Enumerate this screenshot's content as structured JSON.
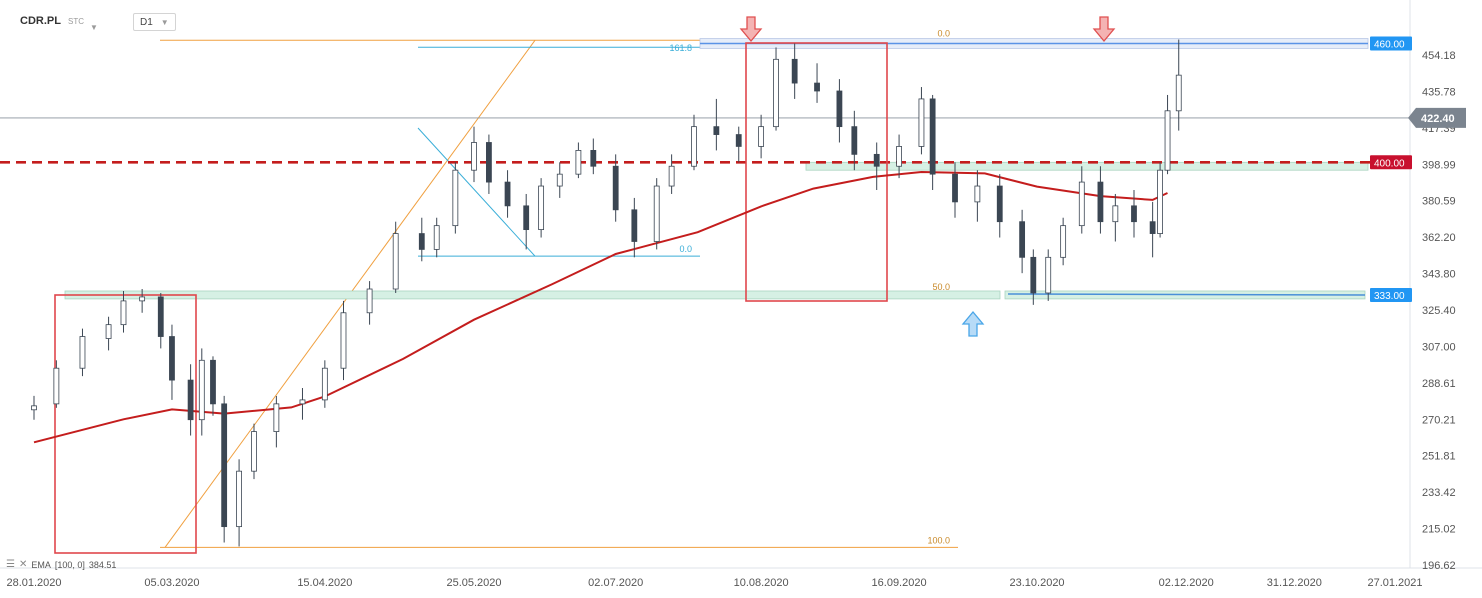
{
  "header": {
    "symbol": "CDR.PL",
    "market": "STC",
    "timeframe": "D1"
  },
  "legend": {
    "indicator": "EMA",
    "params": "[100, 0]",
    "value": "384.51"
  },
  "price_tags": {
    "current": "422.40",
    "resistance_high": "460.00",
    "support_mid": "400.00",
    "support_low": "333.00"
  },
  "colors": {
    "bull_candle": "#ffffff",
    "bear_candle": "#3b4653",
    "ema": "#c41d1d",
    "dashed_level": "#c41d1d",
    "fib_orange": "#f0a040",
    "fib_blue": "#3aaed8",
    "zone_fill": "#d6f0e4",
    "sell_arrow": "#e05050",
    "buy_arrow": "#4aa6e8",
    "tag_blue": "#2196f3",
    "tag_red": "#c8102e",
    "tag_grey": "#7b848f"
  },
  "chart_data": {
    "type": "candlestick",
    "title": "",
    "ylim": [
      196.62,
      472.56
    ],
    "y_ticks": [
      "454.18",
      "435.78",
      "417.39",
      "398.99",
      "380.59",
      "362.20",
      "343.80",
      "325.40",
      "307.00",
      "288.61",
      "270.21",
      "251.81",
      "233.42",
      "215.02",
      "196.62"
    ],
    "x_ticks": [
      "28.01.2020",
      "05.03.2020",
      "15.04.2020",
      "25.05.2020",
      "02.07.2020",
      "10.08.2020",
      "16.09.2020",
      "23.10.2020",
      "02.12.2020",
      "31.12.2020",
      "27.01.2021"
    ],
    "horizontal_levels": [
      {
        "value": 460.0,
        "style": "solid-blue-band"
      },
      {
        "value": 422.4,
        "style": "thin-grey"
      },
      {
        "value": 400.0,
        "style": "dashed-red"
      },
      {
        "value": 333.0,
        "style": "solid-blue-band"
      }
    ],
    "fibonacci_1": {
      "color": "orange",
      "levels": [
        {
          "label": "0.0",
          "price": 461.6
        },
        {
          "label": "50.0",
          "price": 333.5
        },
        {
          "label": "100.0",
          "price": 205.5
        }
      ]
    },
    "fibonacci_2": {
      "color": "blue",
      "levels": [
        {
          "label": "161.8",
          "price": 458.1
        },
        {
          "label": "0.0",
          "price": 352.6
        }
      ]
    },
    "ema_100": [
      {
        "date": "2020-01-28",
        "value": 258.6
      },
      {
        "date": "2020-02-21",
        "value": 270.2
      },
      {
        "date": "2020-03-05",
        "value": 275.2
      },
      {
        "date": "2020-03-19",
        "value": 273.1
      },
      {
        "date": "2020-04-06",
        "value": 276.2
      },
      {
        "date": "2020-04-15",
        "value": 281.7
      },
      {
        "date": "2020-05-06",
        "value": 300.7
      },
      {
        "date": "2020-05-25",
        "value": 320.5
      },
      {
        "date": "2020-06-15",
        "value": 338.5
      },
      {
        "date": "2020-07-02",
        "value": 353.7
      },
      {
        "date": "2020-07-24",
        "value": 364.7
      },
      {
        "date": "2020-08-10",
        "value": 377.7
      },
      {
        "date": "2020-08-24",
        "value": 386.7
      },
      {
        "date": "2020-09-09",
        "value": 392.6
      },
      {
        "date": "2020-09-22",
        "value": 395.1
      },
      {
        "date": "2020-10-09",
        "value": 394.4
      },
      {
        "date": "2020-10-23",
        "value": 387.7
      },
      {
        "date": "2020-11-09",
        "value": 382.9
      },
      {
        "date": "2020-11-23",
        "value": 381.0
      },
      {
        "date": "2020-11-27",
        "value": 384.5
      }
    ],
    "candles": [
      {
        "date": "2020-01-28",
        "o": 275,
        "h": 282,
        "l": 270,
        "c": 277
      },
      {
        "date": "2020-02-03",
        "o": 278,
        "h": 300,
        "l": 276,
        "c": 296
      },
      {
        "date": "2020-02-10",
        "o": 296,
        "h": 316,
        "l": 292,
        "c": 312
      },
      {
        "date": "2020-02-17",
        "o": 311,
        "h": 322,
        "l": 305,
        "c": 318
      },
      {
        "date": "2020-02-21",
        "o": 318,
        "h": 335,
        "l": 314,
        "c": 330
      },
      {
        "date": "2020-02-26",
        "o": 330,
        "h": 336,
        "l": 324,
        "c": 332
      },
      {
        "date": "2020-03-02",
        "o": 332,
        "h": 334,
        "l": 306,
        "c": 312
      },
      {
        "date": "2020-03-05",
        "o": 312,
        "h": 318,
        "l": 280,
        "c": 290
      },
      {
        "date": "2020-03-10",
        "o": 290,
        "h": 298,
        "l": 262,
        "c": 270
      },
      {
        "date": "2020-03-13",
        "o": 270,
        "h": 306,
        "l": 262,
        "c": 300
      },
      {
        "date": "2020-03-16",
        "o": 300,
        "h": 302,
        "l": 272,
        "c": 278
      },
      {
        "date": "2020-03-19",
        "o": 278,
        "h": 282,
        "l": 208,
        "c": 216
      },
      {
        "date": "2020-03-23",
        "o": 216,
        "h": 250,
        "l": 206,
        "c": 244
      },
      {
        "date": "2020-03-27",
        "o": 244,
        "h": 268,
        "l": 240,
        "c": 264
      },
      {
        "date": "2020-04-02",
        "o": 264,
        "h": 282,
        "l": 256,
        "c": 278
      },
      {
        "date": "2020-04-09",
        "o": 278,
        "h": 286,
        "l": 270,
        "c": 280
      },
      {
        "date": "2020-04-15",
        "o": 280,
        "h": 300,
        "l": 276,
        "c": 296
      },
      {
        "date": "2020-04-20",
        "o": 296,
        "h": 330,
        "l": 290,
        "c": 324
      },
      {
        "date": "2020-04-27",
        "o": 324,
        "h": 340,
        "l": 318,
        "c": 336
      },
      {
        "date": "2020-05-04",
        "o": 336,
        "h": 370,
        "l": 334,
        "c": 364
      },
      {
        "date": "2020-05-11",
        "o": 364,
        "h": 372,
        "l": 350,
        "c": 356
      },
      {
        "date": "2020-05-15",
        "o": 356,
        "h": 372,
        "l": 352,
        "c": 368
      },
      {
        "date": "2020-05-20",
        "o": 368,
        "h": 400,
        "l": 364,
        "c": 396
      },
      {
        "date": "2020-05-25",
        "o": 396,
        "h": 418,
        "l": 390,
        "c": 410
      },
      {
        "date": "2020-05-29",
        "o": 410,
        "h": 414,
        "l": 384,
        "c": 390
      },
      {
        "date": "2020-06-03",
        "o": 390,
        "h": 396,
        "l": 372,
        "c": 378
      },
      {
        "date": "2020-06-08",
        "o": 378,
        "h": 384,
        "l": 356,
        "c": 366
      },
      {
        "date": "2020-06-12",
        "o": 366,
        "h": 392,
        "l": 362,
        "c": 388
      },
      {
        "date": "2020-06-17",
        "o": 388,
        "h": 400,
        "l": 382,
        "c": 394
      },
      {
        "date": "2020-06-22",
        "o": 394,
        "h": 410,
        "l": 392,
        "c": 406
      },
      {
        "date": "2020-06-26",
        "o": 406,
        "h": 412,
        "l": 394,
        "c": 398
      },
      {
        "date": "2020-07-02",
        "o": 398,
        "h": 404,
        "l": 370,
        "c": 376
      },
      {
        "date": "2020-07-07",
        "o": 376,
        "h": 382,
        "l": 352,
        "c": 360
      },
      {
        "date": "2020-07-13",
        "o": 360,
        "h": 392,
        "l": 356,
        "c": 388
      },
      {
        "date": "2020-07-17",
        "o": 388,
        "h": 404,
        "l": 384,
        "c": 398
      },
      {
        "date": "2020-07-23",
        "o": 398,
        "h": 424,
        "l": 396,
        "c": 418
      },
      {
        "date": "2020-07-29",
        "o": 418,
        "h": 432,
        "l": 406,
        "c": 414
      },
      {
        "date": "2020-08-04",
        "o": 414,
        "h": 418,
        "l": 400,
        "c": 408
      },
      {
        "date": "2020-08-10",
        "o": 408,
        "h": 424,
        "l": 402,
        "c": 418
      },
      {
        "date": "2020-08-14",
        "o": 418,
        "h": 458,
        "l": 416,
        "c": 452
      },
      {
        "date": "2020-08-19",
        "o": 452,
        "h": 460,
        "l": 432,
        "c": 440
      },
      {
        "date": "2020-08-25",
        "o": 440,
        "h": 450,
        "l": 430,
        "c": 436
      },
      {
        "date": "2020-08-31",
        "o": 436,
        "h": 442,
        "l": 410,
        "c": 418
      },
      {
        "date": "2020-09-04",
        "o": 418,
        "h": 426,
        "l": 396,
        "c": 404
      },
      {
        "date": "2020-09-10",
        "o": 404,
        "h": 410,
        "l": 386,
        "c": 398
      },
      {
        "date": "2020-09-16",
        "o": 398,
        "h": 414,
        "l": 392,
        "c": 408
      },
      {
        "date": "2020-09-22",
        "o": 408,
        "h": 438,
        "l": 404,
        "c": 432
      },
      {
        "date": "2020-09-25",
        "o": 432,
        "h": 434,
        "l": 386,
        "c": 394
      },
      {
        "date": "2020-10-01",
        "o": 394,
        "h": 400,
        "l": 372,
        "c": 380
      },
      {
        "date": "2020-10-07",
        "o": 380,
        "h": 396,
        "l": 370,
        "c": 388
      },
      {
        "date": "2020-10-13",
        "o": 388,
        "h": 394,
        "l": 362,
        "c": 370
      },
      {
        "date": "2020-10-19",
        "o": 370,
        "h": 376,
        "l": 344,
        "c": 352
      },
      {
        "date": "2020-10-22",
        "o": 352,
        "h": 356,
        "l": 328,
        "c": 334
      },
      {
        "date": "2020-10-26",
        "o": 334,
        "h": 356,
        "l": 330,
        "c": 352
      },
      {
        "date": "2020-10-30",
        "o": 352,
        "h": 372,
        "l": 348,
        "c": 368
      },
      {
        "date": "2020-11-04",
        "o": 368,
        "h": 398,
        "l": 364,
        "c": 390
      },
      {
        "date": "2020-11-09",
        "o": 390,
        "h": 398,
        "l": 364,
        "c": 370
      },
      {
        "date": "2020-11-13",
        "o": 370,
        "h": 384,
        "l": 360,
        "c": 378
      },
      {
        "date": "2020-11-18",
        "o": 378,
        "h": 386,
        "l": 362,
        "c": 370
      },
      {
        "date": "2020-11-23",
        "o": 370,
        "h": 380,
        "l": 352,
        "c": 364
      },
      {
        "date": "2020-11-25",
        "o": 364,
        "h": 400,
        "l": 362,
        "c": 396
      },
      {
        "date": "2020-11-27",
        "o": 396,
        "h": 434,
        "l": 394,
        "c": 426
      },
      {
        "date": "2020-11-30",
        "o": 426,
        "h": 462,
        "l": 416,
        "c": 444
      }
    ]
  }
}
